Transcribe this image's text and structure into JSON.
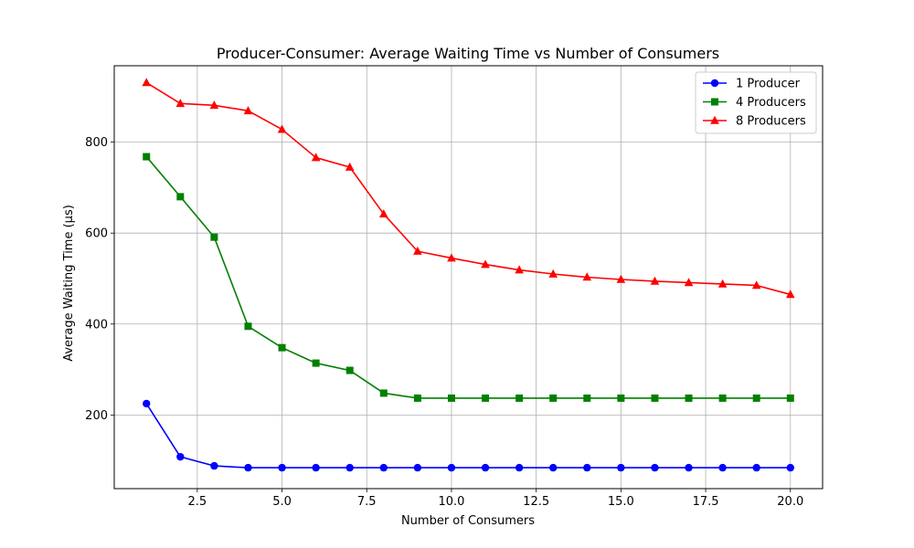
{
  "chart_data": {
    "type": "line",
    "title": "Producer-Consumer: Average Waiting Time vs Number of Consumers",
    "xlabel": "Number of Consumers",
    "ylabel": "Average Waiting Time (µs)",
    "xlim": [
      0.05,
      20.95
    ],
    "ylim": [
      38,
      968
    ],
    "xticks": [
      2.5,
      5.0,
      7.5,
      10.0,
      12.5,
      15.0,
      17.5,
      20.0
    ],
    "xtick_labels": [
      "2.5",
      "5.0",
      "7.5",
      "10.0",
      "12.5",
      "15.0",
      "17.5",
      "20.0"
    ],
    "yticks": [
      200,
      400,
      600,
      800
    ],
    "ytick_labels": [
      "200",
      "400",
      "600",
      "800"
    ],
    "grid": true,
    "legend_position": "top-right",
    "x": [
      1,
      2,
      3,
      4,
      5,
      6,
      7,
      8,
      9,
      10,
      11,
      12,
      13,
      14,
      15,
      16,
      17,
      18,
      19,
      20
    ],
    "series": [
      {
        "name": "1 Producer",
        "color": "#0000ff",
        "marker": "circle",
        "values": [
          225,
          108,
          88,
          84,
          84,
          84,
          84,
          84,
          84,
          84,
          84,
          84,
          84,
          84,
          84,
          84,
          84,
          84,
          84,
          84
        ]
      },
      {
        "name": "4 Producers",
        "color": "#008000",
        "marker": "square",
        "values": [
          768,
          680,
          591,
          395,
          348,
          314,
          298,
          248,
          237,
          237,
          237,
          237,
          237,
          237,
          237,
          237,
          237,
          237,
          237,
          237
        ]
      },
      {
        "name": "8 Producers",
        "color": "#ff0000",
        "marker": "triangle",
        "values": [
          931,
          885,
          881,
          869,
          828,
          766,
          745,
          642,
          560,
          545,
          531,
          519,
          510,
          503,
          498,
          494,
          491,
          488,
          485,
          465
        ]
      }
    ]
  }
}
